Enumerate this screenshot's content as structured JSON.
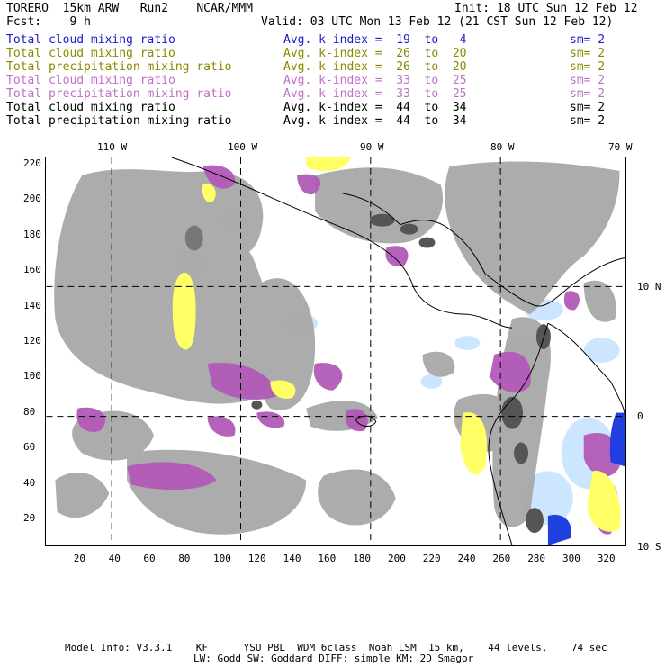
{
  "header": {
    "model": "TORERO  15km ARW   Run2    NCAR/MMM",
    "init": "Init: 18 UTC Sun 12 Feb 12",
    "fcst": "Fcst:    9 h",
    "valid": "Valid: 03 UTC Mon 13 Feb 12 (21 CST Sun 12 Feb 12)"
  },
  "legend": [
    {
      "field": "Total cloud mixing ratio",
      "kindex": "Avg. k-index =  19  to   4",
      "sm": "sm= 2",
      "color": "#1a1acc"
    },
    {
      "field": "Total cloud mixing ratio",
      "kindex": "Avg. k-index =  26  to  20",
      "sm": "sm= 2",
      "color": "#8a8a00"
    },
    {
      "field": "Total precipitation mixing ratio",
      "kindex": "Avg. k-index =  26  to  20",
      "sm": "sm= 2",
      "color": "#8a8a00"
    },
    {
      "field": "Total cloud mixing ratio",
      "kindex": "Avg. k-index =  33  to  25",
      "sm": "sm= 2",
      "color": "#c070c8"
    },
    {
      "field": "Total precipitation mixing ratio",
      "kindex": "Avg. k-index =  33  to  25",
      "sm": "sm= 2",
      "color": "#c070c8"
    },
    {
      "field": "Total cloud mixing ratio",
      "kindex": "Avg. k-index =  44  to  34",
      "sm": "sm= 2",
      "color": "#000000"
    },
    {
      "field": "Total precipitation mixing ratio",
      "kindex": "Avg. k-index =  44  to  34",
      "sm": "sm= 2",
      "color": "#000000"
    }
  ],
  "axes": {
    "top_lon_labels": [
      "110 W",
      "100 W",
      "90 W",
      "80 W",
      "70 W"
    ],
    "right_lat_labels": [
      "10 N",
      "0",
      "10 S"
    ],
    "y_ticks": [
      "220",
      "200",
      "180",
      "160",
      "140",
      "120",
      "100",
      "80",
      "60",
      "40",
      "20"
    ],
    "x_ticks": [
      "20",
      "40",
      "60",
      "80",
      "100",
      "120",
      "140",
      "160",
      "180",
      "200",
      "220",
      "240",
      "260",
      "280",
      "300",
      "320"
    ]
  },
  "colors": {
    "gray_cloud": "#a8a8a8",
    "dark_gray": "#555555",
    "purple": "#b25ab8",
    "yellow": "#ffff66",
    "light_blue": "#c8e4ff",
    "blue": "#1f3fe0"
  },
  "footer": {
    "line1": "Model Info: V3.3.1    KF      YSU PBL  WDM 6class  Noah LSM  15 km,    44 levels,    74 sec",
    "line2": "LW: Godd SW: Goddard DIFF: simple KM: 2D Smagor"
  }
}
